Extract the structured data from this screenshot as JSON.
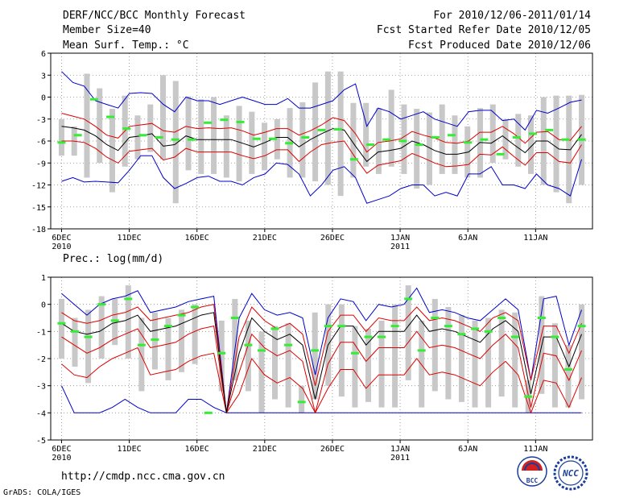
{
  "header": {
    "title": "DERF/NCC/BCC Monthly Forecast",
    "member": "Member Size=40",
    "variable": "Mean Surf. Temp.: °C",
    "period": "For 2010/12/06-2011/01/14",
    "start": "Fcst Started Refer Date 2010/12/05",
    "produced": "Fcst Produced Date 2010/12/06"
  },
  "footer": {
    "url": "http://cmdp.ncc.cma.gov.cn",
    "credit": "GrADS: COLA/IGES",
    "logo_bcc": "BCC",
    "logo_ncc": "NCC"
  },
  "colors": {
    "mean": "#000000",
    "inner": "#dd0000",
    "outer": "#0000cc",
    "box": "#c8c8c8",
    "obs": "#33ee33",
    "grid": "#888888"
  },
  "chart_data": [
    {
      "type": "line",
      "title": "Mean Surf. Temp.: °C",
      "ylim": [
        -18,
        6
      ],
      "yticks": [
        6,
        3,
        0,
        -3,
        -6,
        -9,
        -12,
        -15,
        -18
      ],
      "days": 40,
      "xtick_days": [
        0,
        5,
        10,
        15,
        20,
        25,
        30,
        35
      ],
      "xtick_labels": [
        "6DEC",
        "11DEC",
        "16DEC",
        "21DEC",
        "26DEC",
        "1JAN",
        "6JAN",
        "11JAN"
      ],
      "year_labels": [
        "2010",
        "",
        "",
        "",
        "",
        "2011",
        "",
        ""
      ],
      "series": [
        {
          "name": "mean",
          "values": [
            -4,
            -4.2,
            -4.5,
            -5.3,
            -6.5,
            -7.3,
            -5.5,
            -5.3,
            -5,
            -6.7,
            -6.5,
            -5.3,
            -5.8,
            -5.8,
            -5.8,
            -5.8,
            -6.3,
            -6.8,
            -6.2,
            -5.5,
            -5.5,
            -6.8,
            -5.8,
            -5,
            -4.3,
            -4.5,
            -6.7,
            -8.8,
            -7.5,
            -7.3,
            -7,
            -6,
            -6.5,
            -7.3,
            -7.8,
            -7.8,
            -7.5,
            -6.2,
            -6.3,
            -5.3,
            -6.5,
            -7.6,
            -6,
            -6,
            -7.1,
            -7.2,
            -5.1
          ]
        },
        {
          "name": "upper-inner",
          "values": [
            -2.2,
            -2.6,
            -3,
            -4,
            -5.2,
            -5.6,
            -4,
            -3.8,
            -3.6,
            -4.6,
            -4.8,
            -4,
            -4.3,
            -4.2,
            -4.3,
            -4.2,
            -4.6,
            -5.2,
            -4.8,
            -4.3,
            -4.3,
            -5.2,
            -4.6,
            -3.8,
            -2.8,
            -3.2,
            -5,
            -7.5,
            -6.2,
            -6,
            -5.7,
            -4.7,
            -5.2,
            -5.6,
            -6.2,
            -6.3,
            -6,
            -4.8,
            -4.8,
            -4,
            -5,
            -6.3,
            -4.8,
            -4.7,
            -5.8,
            -5.9,
            -4
          ]
        },
        {
          "name": "lower-inner",
          "values": [
            -6,
            -6,
            -6.2,
            -7,
            -8.2,
            -9,
            -7.4,
            -7.2,
            -7,
            -8.6,
            -8.2,
            -7,
            -7.5,
            -7.5,
            -7.5,
            -7.5,
            -8,
            -8.4,
            -8,
            -7.2,
            -7.2,
            -8.8,
            -7.5,
            -6.5,
            -6.2,
            -6,
            -8.3,
            -10.4,
            -9.3,
            -9,
            -8.7,
            -7.7,
            -8.3,
            -9,
            -9.5,
            -9.4,
            -9.2,
            -7.8,
            -7.9,
            -6.8,
            -8.1,
            -9.3,
            -7.6,
            -7.6,
            -8.8,
            -9,
            -6.5
          ]
        },
        {
          "name": "upper-outer",
          "values": [
            3.5,
            2,
            1.5,
            -0.5,
            -1,
            -1.5,
            0.5,
            0.6,
            0.5,
            -1,
            -2,
            0,
            -0.5,
            -0.5,
            -1,
            -0.5,
            0,
            -0.5,
            -1,
            -1,
            -0.2,
            -1.5,
            -1.5,
            -1,
            -0.5,
            1,
            1.8,
            -4,
            -1.5,
            -2,
            -3,
            -2.5,
            -2,
            -3,
            -3.5,
            -4,
            -2,
            -1.8,
            -1.8,
            -3.2,
            -3,
            -4.5,
            -1.8,
            -2.2,
            -1.5,
            -0.7,
            -0.4
          ]
        },
        {
          "name": "lower-outer",
          "values": [
            -11.5,
            -11,
            -11.6,
            -11.5,
            -11.6,
            -11.7,
            -10,
            -8,
            -8,
            -11,
            -12.5,
            -11.8,
            -11,
            -10.8,
            -11.5,
            -11.5,
            -12,
            -11,
            -10.5,
            -9,
            -9.2,
            -10.5,
            -13.5,
            -12,
            -10,
            -9.5,
            -11,
            -14.5,
            -14,
            -13.5,
            -12.5,
            -12,
            -12,
            -13.5,
            -13,
            -13.5,
            -10.5,
            -10.5,
            -9.5,
            -12,
            -12,
            -12.5,
            -10.5,
            -12,
            -12.5,
            -13.5,
            -8.5
          ]
        },
        {
          "name": "observed",
          "values": [
            -6.2,
            -5.2,
            -0.3,
            -2.7,
            -4.3,
            -5.2,
            -5.5,
            -5.8,
            -5.8,
            -3.5,
            -3.1,
            -3.4,
            -5.7,
            -5.7,
            -6.3,
            -5.5,
            -4.5,
            -4.4,
            -8.5,
            -6.5,
            -5.8,
            -6,
            -6.5,
            -5.5,
            -5.2,
            -6.2,
            -5.8,
            -7.8,
            -5.5,
            -5,
            -4.5,
            -5.8,
            -5.8
          ]
        },
        {
          "name": "ensemble-box-top",
          "values": [
            -3,
            -4,
            3.2,
            1.2,
            -1.6,
            0.2,
            -2.5,
            -1,
            3,
            2.2,
            0.1,
            -0.3,
            0,
            -2.5,
            -1.2,
            -2,
            -3.5,
            -3,
            -1.5,
            -0.7,
            2,
            3.5,
            3.5,
            -0.8,
            -0.8,
            -1.5,
            1,
            -1,
            -1.6,
            -2.1,
            -1,
            -2.5,
            -4,
            -1.5,
            -1,
            -3,
            -2.3,
            -2.5,
            0,
            0.2,
            0.2,
            0.3
          ]
        },
        {
          "name": "ensemble-box-bottom",
          "values": [
            -8,
            -8,
            -11,
            -9,
            -13,
            -9.5,
            -8.5,
            -7.5,
            -8.5,
            -14.5,
            -10,
            -10.5,
            -10.5,
            -11,
            -11.5,
            -10.5,
            -10,
            -8.5,
            -11,
            -11,
            -11.5,
            -12,
            -13.5,
            -11,
            -9.5,
            -10.5,
            -9.5,
            -10.5,
            -12.5,
            -12,
            -10.5,
            -10.5,
            -11,
            -11,
            -9,
            -8.5,
            -9.5,
            -10.5,
            -12,
            -13,
            -14.5,
            -12
          ]
        }
      ]
    },
    {
      "type": "line",
      "title": "Prec.: log(mm/d)",
      "ylim": [
        -5,
        1
      ],
      "yticks": [
        1,
        0,
        -1,
        -2,
        -3,
        -4,
        -5
      ],
      "days": 40,
      "xtick_days": [
        0,
        5,
        10,
        15,
        20,
        25,
        30,
        35
      ],
      "xtick_labels": [
        "6DEC",
        "11DEC",
        "16DEC",
        "21DEC",
        "26DEC",
        "1JAN",
        "6JAN",
        "11JAN"
      ],
      "year_labels": [
        "2010",
        "",
        "",
        "",
        "",
        "2011",
        "",
        ""
      ],
      "series": [
        {
          "name": "mean",
          "values": [
            -0.7,
            -1,
            -1.1,
            -1,
            -0.7,
            -0.6,
            -0.4,
            -1,
            -0.9,
            -0.8,
            -0.6,
            -0.4,
            -0.3,
            -4,
            -1.8,
            -0.5,
            -1,
            -1.3,
            -1.1,
            -1.5,
            -3.5,
            -1.5,
            -0.8,
            -0.8,
            -1.5,
            -1,
            -1,
            -1,
            -0.4,
            -1,
            -0.9,
            -1,
            -1.2,
            -1.4,
            -0.9,
            -0.6,
            -1,
            -3.3,
            -1.2,
            -1.2,
            -2.3,
            -1.1
          ]
        },
        {
          "name": "upper-inner",
          "values": [
            -0.3,
            -0.6,
            -0.7,
            -0.6,
            -0.4,
            -0.3,
            -0.1,
            -0.6,
            -0.5,
            -0.4,
            -0.3,
            -0.1,
            0,
            -4,
            -1.2,
            -0.1,
            -0.6,
            -0.9,
            -0.7,
            -1.1,
            -3,
            -1,
            -0.4,
            -0.4,
            -1,
            -0.5,
            -0.6,
            -0.6,
            -0.1,
            -0.6,
            -0.5,
            -0.6,
            -0.8,
            -1,
            -0.5,
            -0.3,
            -0.6,
            -2.8,
            -0.8,
            -0.8,
            -1.8,
            -0.7
          ]
        },
        {
          "name": "lower-inner",
          "values": [
            -1.2,
            -1.5,
            -1.8,
            -1.6,
            -1.3,
            -1.1,
            -0.9,
            -1.6,
            -1.5,
            -1.4,
            -1.1,
            -0.9,
            -0.8,
            -4,
            -2.5,
            -1.1,
            -1.6,
            -1.9,
            -1.7,
            -2.1,
            -4,
            -2.2,
            -1.4,
            -1.4,
            -2.1,
            -1.6,
            -1.6,
            -1.6,
            -1,
            -1.6,
            -1.5,
            -1.6,
            -1.8,
            -2,
            -1.5,
            -1.1,
            -1.6,
            -3.8,
            -1.8,
            -1.9,
            -2.8,
            -1.7
          ]
        },
        {
          "name": "upper-outer",
          "values": [
            0.4,
            0,
            -0.4,
            0,
            0.2,
            0.3,
            0.5,
            -0.3,
            -0.2,
            -0.1,
            0.1,
            0.2,
            0.3,
            -4,
            -0.5,
            0.4,
            -0.2,
            -0.4,
            -0.3,
            -0.5,
            -2.6,
            -0.5,
            0.2,
            0.1,
            -0.6,
            0,
            -0.1,
            0,
            0.6,
            -0.3,
            -0.2,
            -0.3,
            -0.5,
            -0.6,
            -0.2,
            0.2,
            -0.2,
            -2.8,
            0.2,
            0.3,
            -1.5,
            -0.2
          ]
        },
        {
          "name": "lower-inner-2",
          "values": [
            -2.2,
            -2.6,
            -2.7,
            -2.3,
            -2,
            -1.8,
            -1.6,
            -2.6,
            -2.5,
            -2.4,
            -2.1,
            -1.9,
            -1.8,
            -4,
            -3.3,
            -2,
            -2.6,
            -2.9,
            -2.7,
            -3.1,
            -4,
            -3.1,
            -2.4,
            -2.4,
            -3.1,
            -2.6,
            -2.6,
            -2.6,
            -2,
            -2.6,
            -2.5,
            -2.6,
            -2.8,
            -3,
            -2.5,
            -2.1,
            -2.6,
            -4,
            -2.8,
            -2.9,
            -3.8,
            -2.7
          ]
        },
        {
          "name": "lower-outer",
          "values": [
            -3,
            -4,
            -4,
            -4,
            -3.8,
            -3.5,
            -3.8,
            -4,
            -4,
            -4,
            -3.5,
            -3.5,
            -3.8,
            -4,
            -4,
            -4,
            -4,
            -4,
            -4,
            -4,
            -4,
            -4,
            -4,
            -4,
            -4,
            -4,
            -4,
            -4,
            -4,
            -4,
            -4,
            -4,
            -4,
            -4,
            -4,
            -4,
            -4,
            -4,
            -4,
            -4,
            -4,
            -4
          ]
        },
        {
          "name": "observed",
          "values": [
            -0.7,
            -1,
            -1.2,
            0,
            -0.6,
            0.2,
            -1.5,
            -1.3,
            -0.8,
            -0.4,
            -0.1,
            -4,
            -1.8,
            -0.5,
            -1.5,
            -1.7,
            -0.9,
            -1.5,
            -3.6,
            -1.7,
            -0.8,
            -0.8,
            -1.8,
            -1.2,
            -1.2,
            -0.8,
            0.2,
            -1.7,
            -0.5,
            -0.8,
            -1.1,
            -0.9,
            -1,
            -0.5,
            -1.2,
            -3.4,
            -0.5,
            -1.2,
            -2.4,
            -0.8
          ]
        },
        {
          "name": "ensemble-box-top",
          "values": [
            0.2,
            -0.5,
            -0.2,
            0.3,
            0.2,
            0.7,
            -0.5,
            -0.3,
            -0.5,
            -0.2,
            0,
            -4,
            -0.6,
            0.2,
            -0.6,
            -1,
            -0.8,
            -0.7,
            -3,
            -0.3,
            0,
            0,
            -0.8,
            -0.9,
            -0.6,
            0,
            0.7,
            -0.6,
            0.2,
            -0.1,
            -0.4,
            -0.6,
            -0.5,
            -0.2,
            -0.3,
            -2.8,
            0.3,
            -0.7,
            -1.5,
            0
          ]
        },
        {
          "name": "ensemble-box-bottom",
          "values": [
            -2,
            -2.3,
            -2.9,
            -2,
            -1.5,
            -2,
            -3.2,
            -2.4,
            -2.8,
            -2.5,
            -2.2,
            -4,
            -3.2,
            -2.8,
            -3.2,
            -4,
            -3.5,
            -3.8,
            -4,
            -3.5,
            -3,
            -3.4,
            -3.8,
            -3.6,
            -3.8,
            -3.8,
            -2.8,
            -3.8,
            -3.2,
            -3.5,
            -3.6,
            -3.8,
            -3.8,
            -3.4,
            -3.8,
            -4,
            -3.3,
            -3.8,
            -3.8,
            -3.5
          ]
        }
      ]
    }
  ]
}
